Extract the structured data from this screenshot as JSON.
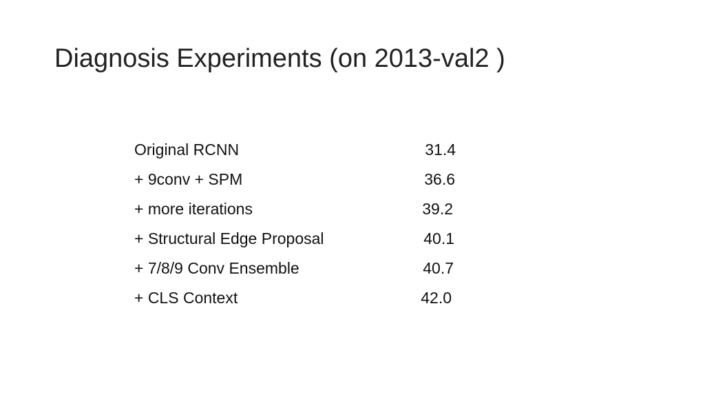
{
  "slide": {
    "title": "Diagnosis Experiments (on 2013-val2 )",
    "rows": [
      {
        "label": "Original RCNN",
        "value": "31.4"
      },
      {
        "label": "+ 9conv + SPM",
        "value": "36.6"
      },
      {
        "label": "+ more iterations",
        "value": "39.2"
      },
      {
        "label": "+ Structural Edge Proposal",
        "value": "40.1"
      },
      {
        "label": "+ 7/8/9 Conv Ensemble",
        "value": "40.7"
      },
      {
        "label": "+ CLS Context",
        "value": "42.0"
      }
    ]
  }
}
